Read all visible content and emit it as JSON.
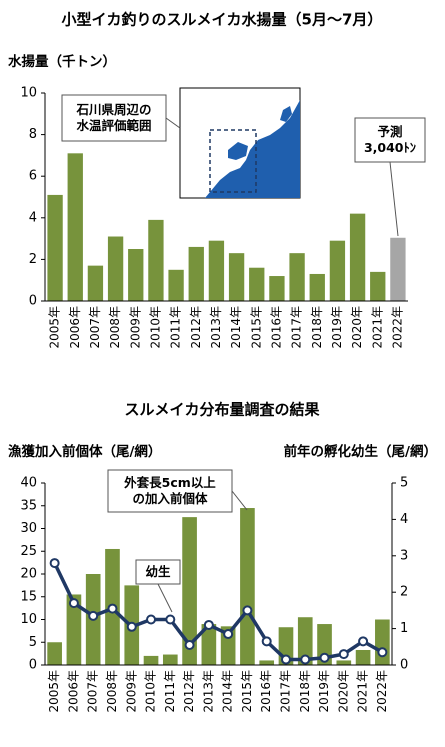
{
  "chart_data": [
    {
      "type": "bar",
      "title": "小型イカ釣りのスルメイカ水揚量（5月～7月）",
      "y_label": "水揚量（千トン）",
      "categories": [
        "2005年",
        "2006年",
        "2007年",
        "2008年",
        "2009年",
        "2010年",
        "2011年",
        "2012年",
        "2013年",
        "2014年",
        "2015年",
        "2016年",
        "2017年",
        "2018年",
        "2019年",
        "2020年",
        "2021年",
        "2022年"
      ],
      "values": [
        5.1,
        7.1,
        1.7,
        3.1,
        2.5,
        3.9,
        1.5,
        2.6,
        2.9,
        2.3,
        1.6,
        1.2,
        2.3,
        1.3,
        2.9,
        4.2,
        1.4,
        3.04
      ],
      "colors": [
        "#77933c",
        "#77933c",
        "#77933c",
        "#77933c",
        "#77933c",
        "#77933c",
        "#77933c",
        "#77933c",
        "#77933c",
        "#77933c",
        "#77933c",
        "#77933c",
        "#77933c",
        "#77933c",
        "#77933c",
        "#77933c",
        "#77933c",
        "#a6a6a6"
      ],
      "ylim": [
        0,
        10
      ],
      "yticks": [
        0,
        2,
        4,
        6,
        8,
        10
      ],
      "annotations": [
        {
          "lines": [
            "石川県周辺の",
            "水温評価範囲"
          ]
        },
        {
          "lines": [
            "予測",
            "3,040ﾄﾝ"
          ]
        }
      ]
    },
    {
      "type": "combo",
      "title": "スルメイカ分布量調査の結果",
      "y_label": "漁獲加入前個体（尾/網）",
      "y2_label": "前年の孵化幼生（尾/網）",
      "categories": [
        "2005年",
        "2006年",
        "2007年",
        "2008年",
        "2009年",
        "2010年",
        "2011年",
        "2012年",
        "2013年",
        "2014年",
        "2015年",
        "2016年",
        "2017年",
        "2018年",
        "2019年",
        "2020年",
        "2021年",
        "2022年"
      ],
      "series": [
        {
          "type": "bar",
          "color": "#77933c",
          "values": [
            5,
            15.5,
            20,
            25.5,
            17.5,
            2,
            2.3,
            32.5,
            9,
            8.5,
            34.5,
            1,
            8.3,
            10.5,
            9,
            1,
            3.3,
            10
          ]
        },
        {
          "type": "line",
          "axis": "y2",
          "color": "#1f3864",
          "values": [
            2.8,
            1.7,
            1.35,
            1.55,
            1.05,
            1.25,
            1.25,
            0.55,
            1.1,
            0.85,
            1.5,
            0.65,
            0.15,
            0.15,
            0.2,
            0.3,
            0.65,
            0.35
          ]
        }
      ],
      "ylim": [
        0,
        40
      ],
      "yticks": [
        0,
        5,
        10,
        15,
        20,
        25,
        30,
        35,
        40
      ],
      "y2lim": [
        0,
        5
      ],
      "y2ticks": [
        0,
        1,
        2,
        3,
        4,
        5
      ],
      "annotations": [
        {
          "lines": [
            "外套長5cm以上",
            "の加入前個体"
          ]
        },
        {
          "lines": [
            "幼生"
          ]
        }
      ]
    }
  ]
}
